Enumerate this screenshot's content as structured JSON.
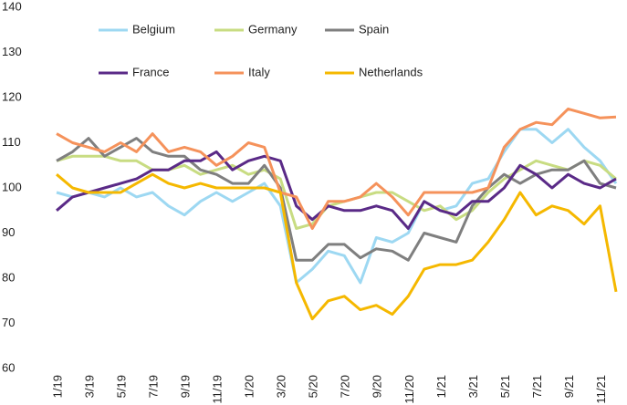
{
  "chart_data": {
    "type": "line",
    "categories": [
      "1/19",
      null,
      "3/19",
      null,
      "5/19",
      null,
      "7/19",
      null,
      "9/19",
      null,
      "11/19",
      null,
      "1/20",
      null,
      "3/20",
      null,
      "5/20",
      null,
      "7/20",
      null,
      "9/20",
      null,
      "11/20",
      null,
      "1/21",
      null,
      "3/21",
      null,
      "5/21",
      null,
      "7/21",
      null,
      "9/21",
      null,
      "11/21",
      null
    ],
    "series": [
      {
        "name": "Belgium",
        "color": "#9dd8f2",
        "values": [
          99,
          98,
          99,
          98,
          100,
          98,
          99,
          96,
          94,
          97,
          99,
          97,
          99,
          101,
          96,
          79,
          82,
          86,
          85,
          79,
          89,
          88,
          90,
          97,
          95,
          96,
          101,
          102,
          108,
          113,
          113,
          110,
          113,
          109,
          106,
          101
        ]
      },
      {
        "name": "Germany",
        "color": "#c8dc82",
        "values": [
          106,
          107,
          107,
          107,
          106,
          106,
          104,
          104,
          105,
          103,
          104,
          105,
          103,
          104,
          102,
          91,
          92,
          96,
          97,
          98,
          99,
          99,
          97,
          95,
          96,
          93,
          95,
          99,
          102,
          104,
          106,
          105,
          104,
          106,
          105,
          102
        ]
      },
      {
        "name": "Spain",
        "color": "#7f7f7f",
        "values": [
          106,
          108,
          111,
          107,
          109,
          111,
          108,
          107,
          107,
          104,
          103,
          101,
          101,
          105,
          100,
          84,
          84,
          87.5,
          87.5,
          84.5,
          86.5,
          86,
          84,
          90,
          89,
          88,
          96,
          100,
          103,
          101,
          103,
          104,
          104,
          106,
          101,
          100
        ]
      },
      {
        "name": "France",
        "color": "#5a2a87",
        "values": [
          95,
          98,
          99,
          100,
          101,
          102,
          104,
          104,
          106,
          106,
          108,
          104,
          106,
          107,
          106,
          96,
          93,
          96,
          95,
          95,
          96,
          95,
          91,
          97,
          95,
          94,
          97,
          97,
          100,
          105,
          103,
          100,
          103,
          101,
          100,
          102
        ]
      },
      {
        "name": "Italy",
        "color": "#f5925b",
        "values": [
          112,
          110,
          109,
          108,
          110,
          108,
          112,
          108,
          109,
          108,
          105,
          107,
          110,
          109,
          99,
          98,
          91,
          97,
          97,
          98,
          101,
          98,
          94,
          99,
          99,
          99,
          99,
          100,
          109,
          113,
          114.5,
          114,
          117.5,
          116.5,
          115.5,
          115.7
        ]
      },
      {
        "name": "Netherlands",
        "color": "#f5b800",
        "values": [
          103,
          100,
          99,
          99,
          99,
          101,
          103,
          101,
          100,
          101,
          100,
          100,
          100,
          100,
          99,
          79,
          71,
          75,
          76,
          73,
          74,
          72,
          76,
          82,
          83,
          83,
          84,
          88,
          93,
          99,
          94,
          96,
          95,
          92,
          96,
          77
        ]
      }
    ],
    "ylim": [
      60,
      140
    ],
    "yticks": [
      60,
      70,
      80,
      90,
      100,
      110,
      120,
      130,
      140
    ],
    "grid": false
  }
}
